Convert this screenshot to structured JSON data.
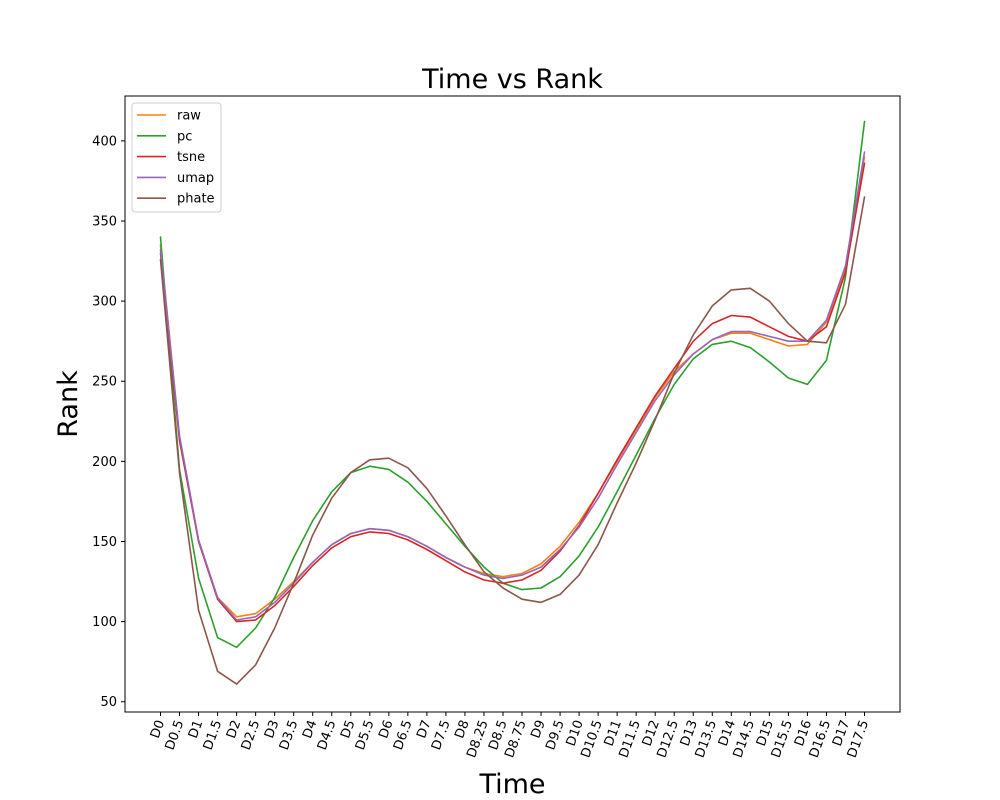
{
  "chart_data": {
    "type": "line",
    "title": "Time vs Rank",
    "xlabel": "Time",
    "ylabel": "Rank",
    "ylim": [
      43.6,
      428
    ],
    "yticks": [
      50,
      100,
      150,
      200,
      250,
      300,
      350,
      400
    ],
    "legend_position": "top-left",
    "grid": false,
    "categories": [
      "D0",
      "D0.5",
      "D1",
      "D1.5",
      "D2",
      "D2.5",
      "D3",
      "D3.5",
      "D4",
      "D4.5",
      "D5",
      "D5.5",
      "D6",
      "D6.5",
      "D7",
      "D7.5",
      "D8",
      "D8.25",
      "D8.5",
      "D8.75",
      "D9",
      "D9.5",
      "D10",
      "D10.5",
      "D11",
      "D11.5",
      "D12",
      "D12.5",
      "D13",
      "D13.5",
      "D14",
      "D14.5",
      "D15",
      "D15.5",
      "D16",
      "D16.5",
      "D17",
      "D17.5"
    ],
    "series": [
      {
        "name": "raw",
        "color": "#ff7f0e",
        "values": [
          335,
          215,
          150,
          115,
          103,
          105,
          114,
          125,
          137,
          148,
          155,
          158,
          157,
          153,
          147,
          140,
          134,
          130,
          128,
          130,
          136,
          147,
          162,
          180,
          200,
          220,
          240,
          256,
          267,
          276,
          280,
          280,
          276,
          272,
          273,
          287,
          320,
          390
        ]
      },
      {
        "name": "pc",
        "color": "#2ca02c",
        "values": [
          340,
          195,
          127,
          90,
          84,
          96,
          115,
          140,
          163,
          181,
          193,
          197,
          195,
          187,
          175,
          161,
          147,
          134,
          124,
          120,
          121,
          128,
          141,
          159,
          181,
          204,
          227,
          248,
          264,
          273,
          275,
          271,
          262,
          252,
          248,
          263,
          315,
          412
        ]
      },
      {
        "name": "tsne",
        "color": "#d62728",
        "values": [
          330,
          213,
          150,
          114,
          100,
          101,
          110,
          122,
          135,
          146,
          153,
          156,
          155,
          151,
          145,
          138,
          131,
          126,
          124,
          126,
          132,
          144,
          160,
          180,
          201,
          221,
          241,
          258,
          275,
          286,
          291,
          290,
          284,
          278,
          275,
          284,
          318,
          386
        ]
      },
      {
        "name": "umap",
        "color": "#9467bd",
        "values": [
          332,
          216,
          151,
          115,
          101,
          103,
          112,
          124,
          137,
          148,
          155,
          158,
          157,
          153,
          147,
          140,
          134,
          129,
          127,
          129,
          134,
          145,
          159,
          177,
          198,
          218,
          238,
          254,
          267,
          276,
          281,
          281,
          278,
          275,
          275,
          288,
          322,
          393
        ]
      },
      {
        "name": "phate",
        "color": "#8c564b",
        "values": [
          326,
          193,
          107,
          69,
          61,
          73,
          96,
          124,
          154,
          177,
          193,
          201,
          202,
          196,
          183,
          166,
          148,
          131,
          121,
          114,
          112,
          117,
          129,
          148,
          174,
          199,
          226,
          255,
          279,
          297,
          307,
          308,
          300,
          286,
          275,
          274,
          298,
          365
        ]
      }
    ]
  }
}
